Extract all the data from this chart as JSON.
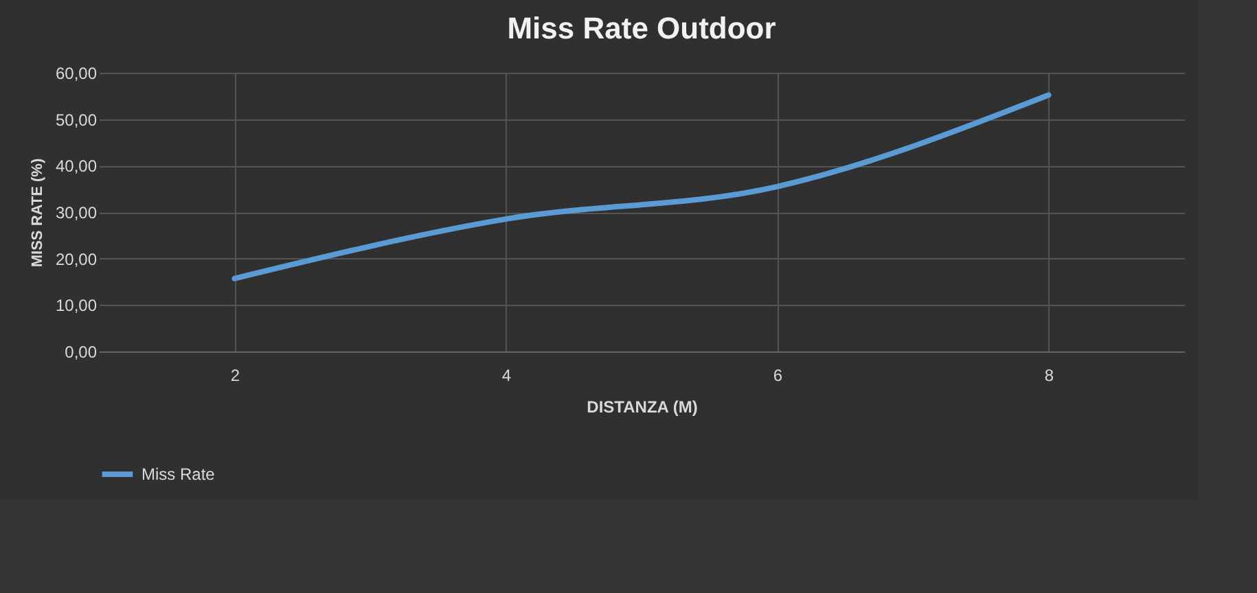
{
  "chart_data": {
    "type": "line",
    "title": "Miss Rate Outdoor",
    "xlabel": "DISTANZA (M)",
    "ylabel": "MISS RATE (%)",
    "categories": [
      "2",
      "4",
      "6",
      "8"
    ],
    "series": [
      {
        "name": "Miss Rate",
        "color": "#5b9bd5",
        "values": [
          15.7,
          28.5,
          35.5,
          55.2
        ]
      }
    ],
    "ylim": [
      0,
      60
    ],
    "yticks": [
      {
        "value": 0,
        "label": "0,00"
      },
      {
        "value": 10,
        "label": "10,00"
      },
      {
        "value": 20,
        "label": "20,00"
      },
      {
        "value": 30,
        "label": "30,00"
      },
      {
        "value": 40,
        "label": "40,00"
      },
      {
        "value": 50,
        "label": "50,00"
      },
      {
        "value": 60,
        "label": "60,00"
      }
    ],
    "grid": true,
    "legend": "bottom",
    "marker": "none"
  }
}
